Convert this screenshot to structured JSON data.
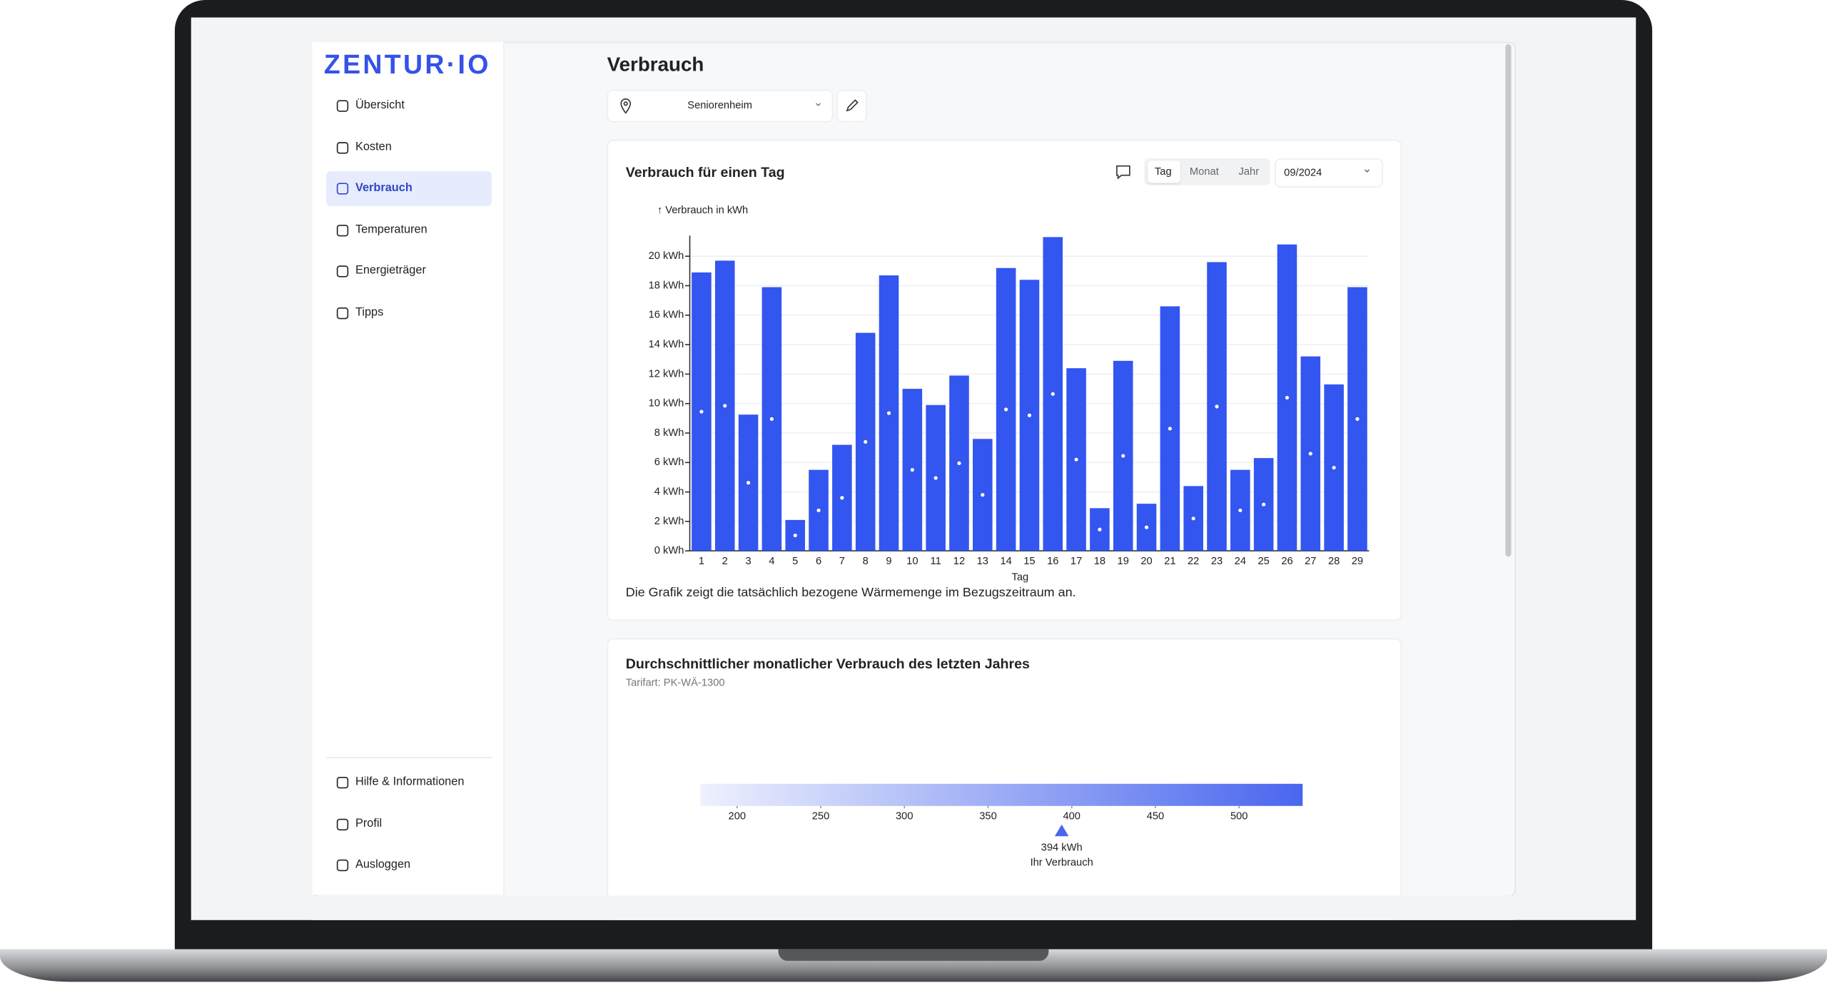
{
  "logo": "ZENTUR·IO",
  "nav": [
    "Übersicht",
    "Kosten",
    "Verbrauch",
    "Temperaturen",
    "Energieträger",
    "Tipps"
  ],
  "nav_bottom": [
    "Hilfe & Informationen",
    "Profil",
    "Ausloggen"
  ],
  "page_title": "Verbrauch",
  "location": "Seniorenheim",
  "period_tabs": [
    "Tag",
    "Monat",
    "Jahr"
  ],
  "period": "09/2024",
  "chart_data": [
    {
      "type": "bar",
      "title": "Verbrauch für einen Tag",
      "y_label": "↑ Verbrauch in kWh",
      "x_label": "Tag",
      "note": "Die Grafik zeigt die tatsächlich bezogene Wärmemenge im Bezugszeitraum an.",
      "categories": [
        "1",
        "2",
        "3",
        "4",
        "5",
        "6",
        "7",
        "8",
        "9",
        "10",
        "11",
        "12",
        "13",
        "14",
        "15",
        "16",
        "17",
        "18",
        "19",
        "20",
        "21",
        "22",
        "23",
        "24",
        "25",
        "26",
        "27",
        "28",
        "29"
      ],
      "values": [
        18.9,
        19.7,
        9.25,
        17.9,
        2.1,
        5.5,
        7.2,
        14.8,
        18.7,
        11.0,
        9.9,
        11.9,
        7.6,
        19.2,
        18.4,
        21.3,
        12.4,
        2.9,
        12.9,
        3.2,
        16.6,
        4.4,
        19.6,
        5.5,
        6.3,
        20.8,
        13.2,
        11.3,
        17.9
      ],
      "color": "#3355f0",
      "ylim": [
        0,
        21.4
      ],
      "yticks": [
        {
          "value": 0,
          "label": "0 kWh"
        },
        {
          "value": 2,
          "label": "2 kWh"
        },
        {
          "value": 4,
          "label": "4 kWh"
        },
        {
          "value": 6,
          "label": "6 kWh"
        },
        {
          "value": 8,
          "label": "8 kWh"
        },
        {
          "value": 10,
          "label": "10 kWh"
        },
        {
          "value": 12,
          "label": "12 kWh"
        },
        {
          "value": 14,
          "label": "14 kWh"
        },
        {
          "value": 16,
          "label": "16 kWh"
        },
        {
          "value": 18,
          "label": "18 kWh"
        },
        {
          "value": 20,
          "label": "20 kWh"
        }
      ],
      "grid": true
    },
    {
      "type": "gauge",
      "title": "Durchschnittlicher monatlicher Verbrauch des letzten Jahres",
      "subtitle": "Tarifart: PK-WÄ-1300",
      "xlim": [
        178,
        538
      ],
      "xticks": [
        200,
        250,
        300,
        350,
        400,
        450,
        500
      ],
      "value": 394,
      "value_label": "394 kWh",
      "marker_label": "Ihr Verbrauch",
      "color": "#4a66ee"
    }
  ]
}
